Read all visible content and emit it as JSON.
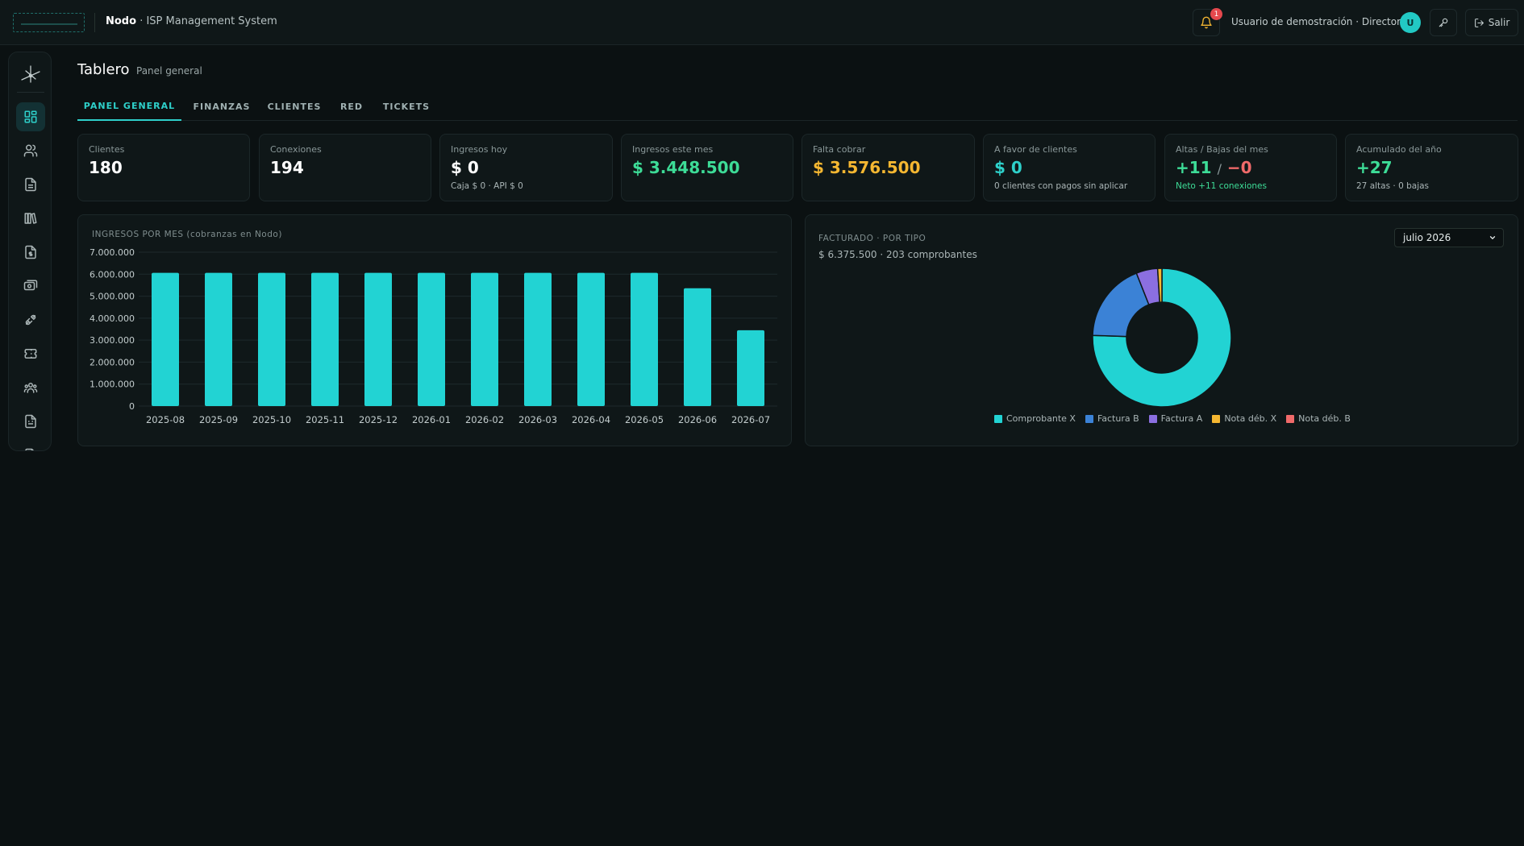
{
  "header": {
    "brand": "Nodo",
    "system": "ISP Management System",
    "notifications_count": "1",
    "user_label": "Usuario de demostración · Director",
    "avatar_initial": "U",
    "exit_label": "Salir"
  },
  "page": {
    "title": "Tablero",
    "subtitle": "Panel general"
  },
  "tabs": [
    {
      "label": "PANEL GENERAL",
      "active": true
    },
    {
      "label": "FINANZAS",
      "active": false
    },
    {
      "label": "CLIENTES",
      "active": false
    },
    {
      "label": "RED",
      "active": false
    },
    {
      "label": "TICKETS",
      "active": false
    }
  ],
  "sidebar": {
    "items": [
      {
        "icon": "dashboard-icon",
        "active": true
      },
      {
        "icon": "users-icon",
        "active": false
      },
      {
        "icon": "document-icon",
        "active": false
      },
      {
        "icon": "library-icon",
        "active": false
      },
      {
        "icon": "invoice-icon",
        "active": false
      },
      {
        "icon": "payments-icon",
        "active": false
      },
      {
        "icon": "network-plug-icon",
        "active": false
      },
      {
        "icon": "ticket-icon",
        "active": false
      },
      {
        "icon": "team-icon",
        "active": false
      },
      {
        "icon": "report-icon",
        "active": false
      },
      {
        "icon": "file-icon",
        "active": false
      }
    ]
  },
  "stats": {
    "clientes": {
      "label": "Clientes",
      "value": "180"
    },
    "conexiones": {
      "label": "Conexiones",
      "value": "194"
    },
    "ingresos_hoy": {
      "label": "Ingresos hoy",
      "value": "$ 0",
      "sub": "Caja $ 0 · API $ 0"
    },
    "ingresos_mes": {
      "label": "Ingresos este mes",
      "value": "$ 3.448.500"
    },
    "falta_cobrar": {
      "label": "Falta cobrar",
      "value": "$ 3.576.500"
    },
    "a_favor": {
      "label": "A favor de clientes",
      "value": "$ 0",
      "sub": "0 clientes con pagos sin aplicar"
    },
    "altas_bajas": {
      "label": "Altas / Bajas del mes",
      "altas": "+11",
      "separator": "/",
      "bajas": "−0",
      "sub": "Neto +11 conexiones"
    },
    "acumulado": {
      "label": "Acumulado del año",
      "value": "+27",
      "sub": "27 altas · 0 bajas"
    }
  },
  "ingresos_panel": {
    "title": "INGRESOS POR MES (cobranzas en Nodo)"
  },
  "facturado_panel": {
    "title": "FACTURADO · POR TIPO",
    "summary": "$ 6.375.500 · 203 comprobantes",
    "month": "julio 2026"
  },
  "chart_data": [
    {
      "type": "bar",
      "title": "INGRESOS POR MES (cobranzas en Nodo)",
      "categories": [
        "2025-08",
        "2025-09",
        "2025-10",
        "2025-11",
        "2025-12",
        "2026-01",
        "2026-02",
        "2026-03",
        "2026-04",
        "2026-05",
        "2026-06",
        "2026-07"
      ],
      "values": [
        6060000,
        6060000,
        6060000,
        6060000,
        6060000,
        6060000,
        6060000,
        6060000,
        6060000,
        6060000,
        5360000,
        3448500
      ],
      "yticks": [
        "0",
        "1.000.000",
        "2.000.000",
        "3.000.000",
        "4.000.000",
        "5.000.000",
        "6.000.000",
        "7.000.000"
      ],
      "ylim": [
        0,
        7000000
      ],
      "grid": true,
      "color": "#22d3d3"
    },
    {
      "type": "pie",
      "title": "FACTURADO · POR TIPO",
      "donut": true,
      "slices": [
        {
          "label": "Comprobante X",
          "value": 75.5,
          "color": "#22d3d3"
        },
        {
          "label": "Factura B",
          "value": 18.5,
          "color": "#3b82d6"
        },
        {
          "label": "Factura A",
          "value": 5.0,
          "color": "#8b6fe0"
        },
        {
          "label": "Nota déb. X",
          "value": 1.0,
          "color": "#f5b731"
        },
        {
          "label": "Nota déb. B",
          "value": 0.0,
          "color": "#f06a6a"
        }
      ],
      "legend": "bottom"
    }
  ]
}
